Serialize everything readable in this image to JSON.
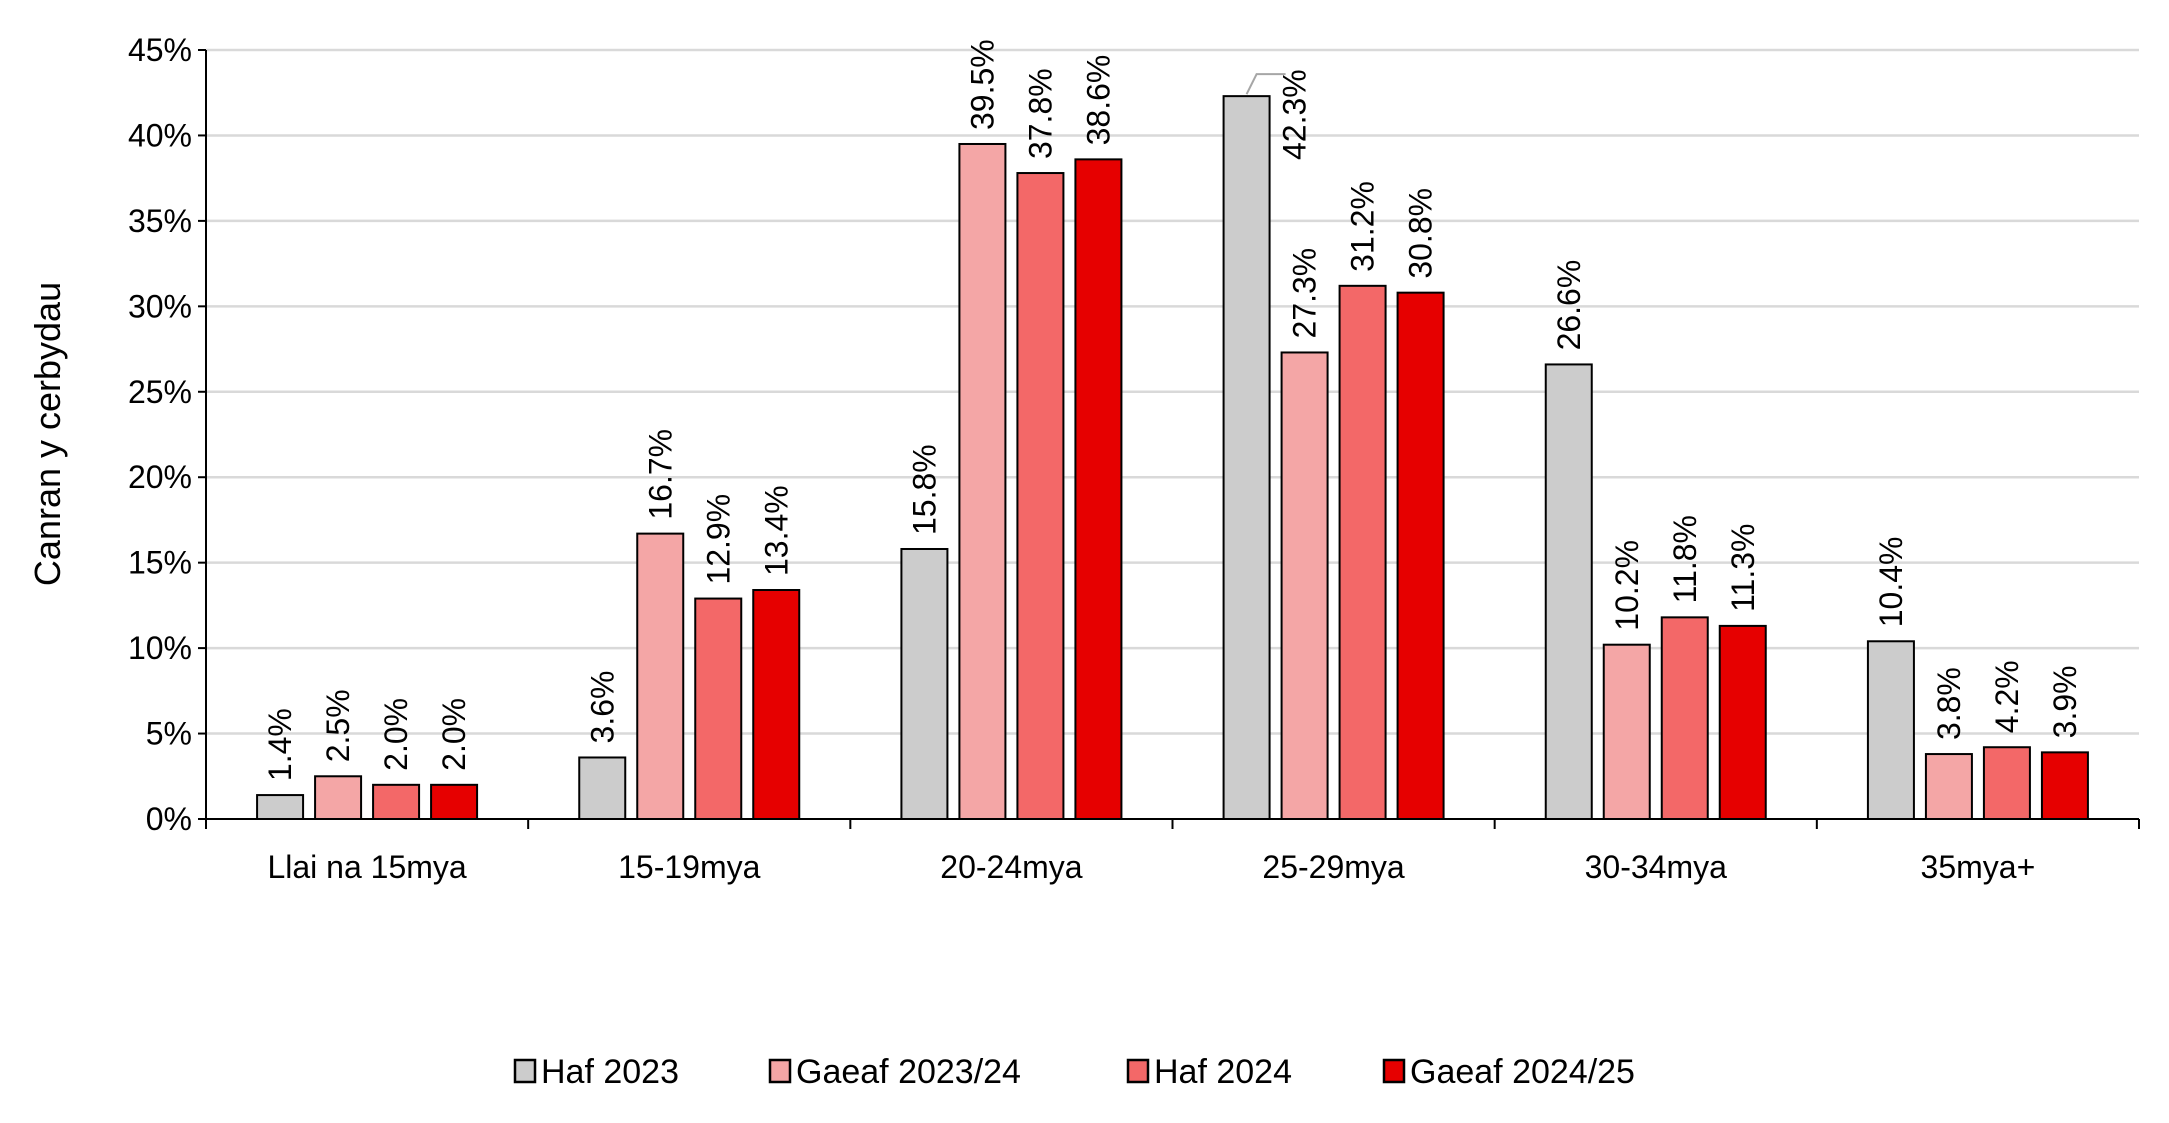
{
  "chart_data": {
    "type": "bar",
    "title": "",
    "xlabel": "",
    "ylabel": "Canran y cerbydau",
    "ylim": [
      0,
      45
    ],
    "yticks": [
      "0%",
      "5%",
      "10%",
      "15%",
      "20%",
      "25%",
      "30%",
      "35%",
      "40%",
      "45%"
    ],
    "grid": true,
    "legend_position": "bottom",
    "categories": [
      "Llai na 15mya",
      "15-19mya",
      "20-24mya",
      "25-29mya",
      "30-34mya",
      "35mya+"
    ],
    "series": [
      {
        "name": "Haf 2023",
        "color": "#cccccc",
        "values": [
          1.4,
          3.6,
          15.8,
          42.3,
          26.6,
          10.4
        ],
        "labels": [
          "1.4%",
          "3.6%",
          "15.8%",
          "42.3%",
          "26.6%",
          "10.4%"
        ]
      },
      {
        "name": "Gaeaf 2023/24",
        "color": "#f4a6a6",
        "values": [
          2.5,
          16.7,
          39.5,
          27.3,
          10.2,
          3.8
        ],
        "labels": [
          "2.5%",
          "16.7%",
          "39.5%",
          "27.3%",
          "10.2%",
          "3.8%"
        ]
      },
      {
        "name": "Haf 2024",
        "color": "#f36868",
        "values": [
          2.0,
          12.9,
          37.8,
          31.2,
          11.8,
          4.2
        ],
        "labels": [
          "2.0%",
          "12.9%",
          "37.8%",
          "31.2%",
          "11.8%",
          "4.2%"
        ]
      },
      {
        "name": "Gaeaf 2024/25",
        "color": "#e60000",
        "values": [
          2.0,
          13.4,
          38.6,
          30.8,
          11.3,
          3.9
        ],
        "labels": [
          "2.0%",
          "13.4%",
          "38.6%",
          "30.8%",
          "11.3%",
          "3.9%"
        ]
      }
    ]
  }
}
